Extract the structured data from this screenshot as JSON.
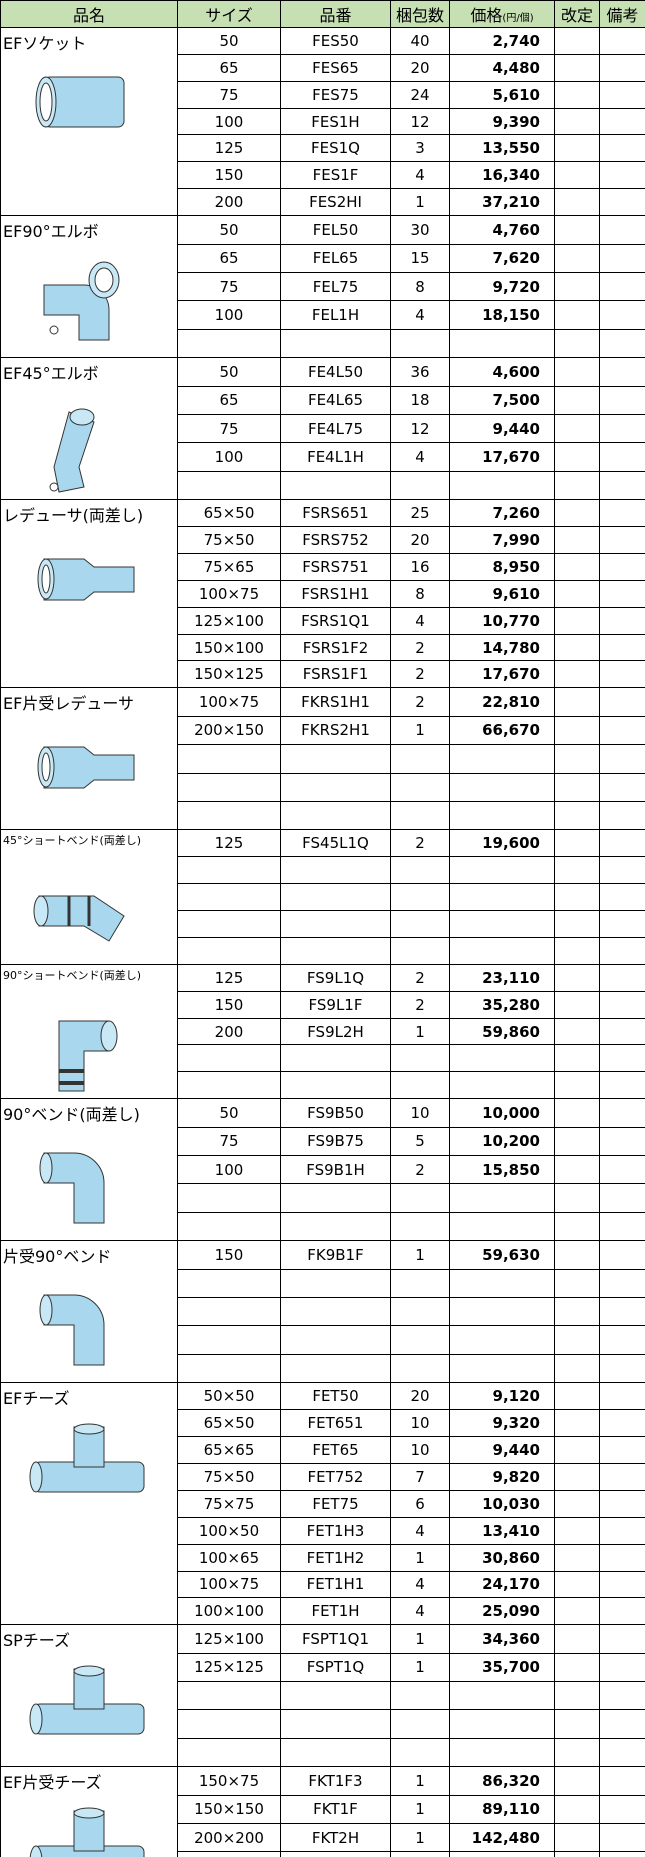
{
  "header": {
    "name": "品名",
    "size": "サイズ",
    "code": "品番",
    "qty": "梱包数",
    "price": "価格",
    "price_unit": "(円/個)",
    "revision": "改定",
    "note": "備考"
  },
  "groups": [
    {
      "name": "EFソケット",
      "rows": [
        [
          "50",
          "FES50",
          40,
          "2,740"
        ],
        [
          "65",
          "FES65",
          20,
          "4,480"
        ],
        [
          "75",
          "FES75",
          24,
          "5,610"
        ],
        [
          "100",
          "FES1H",
          12,
          "9,390"
        ],
        [
          "125",
          "FES1Q",
          3,
          "13,550"
        ],
        [
          "150",
          "FES1F",
          4,
          "16,340"
        ],
        [
          "200",
          "FES2HI",
          1,
          "37,210"
        ]
      ]
    },
    {
      "name": "EF90°エルボ",
      "rows": [
        [
          "50",
          "FEL50",
          30,
          "4,760"
        ],
        [
          "65",
          "FEL65",
          15,
          "7,620"
        ],
        [
          "75",
          "FEL75",
          8,
          "9,720"
        ],
        [
          "100",
          "FEL1H",
          4,
          "18,150"
        ]
      ]
    },
    {
      "name": "EF45°エルボ",
      "rows": [
        [
          "50",
          "FE4L50",
          36,
          "4,600"
        ],
        [
          "65",
          "FE4L65",
          18,
          "7,500"
        ],
        [
          "75",
          "FE4L75",
          12,
          "9,440"
        ],
        [
          "100",
          "FE4L1H",
          4,
          "17,670"
        ]
      ]
    },
    {
      "name": "レデューサ(両差し)",
      "rows": [
        [
          "65×50",
          "FSRS651",
          25,
          "7,260"
        ],
        [
          "75×50",
          "FSRS752",
          20,
          "7,990"
        ],
        [
          "75×65",
          "FSRS751",
          16,
          "8,950"
        ],
        [
          "100×75",
          "FSRS1H1",
          8,
          "9,610"
        ],
        [
          "125×100",
          "FSRS1Q1",
          4,
          "10,770"
        ],
        [
          "150×100",
          "FSRS1F2",
          2,
          "14,780"
        ],
        [
          "150×125",
          "FSRS1F1",
          2,
          "17,670"
        ]
      ]
    },
    {
      "name": "EF片受レデューサ",
      "rows": [
        [
          "100×75",
          "FKRS1H1",
          2,
          "22,810"
        ],
        [
          "200×150",
          "FKRS2H1",
          1,
          "66,670"
        ]
      ]
    },
    {
      "name": "45°ショートベンド(両差し)",
      "rows": [
        [
          "125",
          "FS45L1Q",
          2,
          "19,600"
        ]
      ]
    },
    {
      "name": "90°ショートベンド(両差し)",
      "rows": [
        [
          "125",
          "FS9L1Q",
          2,
          "23,110"
        ],
        [
          "150",
          "FS9L1F",
          2,
          "35,280"
        ],
        [
          "200",
          "FS9L2H",
          1,
          "59,860"
        ]
      ]
    },
    {
      "name": "90°ベンド(両差し)",
      "rows": [
        [
          "50",
          "FS9B50",
          10,
          "10,000"
        ],
        [
          "75",
          "FS9B75",
          5,
          "10,200"
        ],
        [
          "100",
          "FS9B1H",
          2,
          "15,850"
        ]
      ]
    },
    {
      "name": "片受90°ベンド",
      "rows": [
        [
          "150",
          "FK9B1F",
          1,
          "59,630"
        ]
      ]
    },
    {
      "name": "EFチーズ",
      "rows": [
        [
          "50×50",
          "FET50",
          20,
          "9,120"
        ],
        [
          "65×50",
          "FET651",
          10,
          "9,320"
        ],
        [
          "65×65",
          "FET65",
          10,
          "9,440"
        ],
        [
          "75×50",
          "FET752",
          7,
          "9,820"
        ],
        [
          "75×75",
          "FET75",
          6,
          "10,030"
        ],
        [
          "100×50",
          "FET1H3",
          4,
          "13,410"
        ],
        [
          "100×65",
          "FET1H2",
          1,
          "30,860"
        ],
        [
          "100×75",
          "FET1H1",
          4,
          "24,170"
        ],
        [
          "100×100",
          "FET1H",
          4,
          "25,090"
        ]
      ]
    },
    {
      "name": "SPチーズ",
      "rows": [
        [
          "125×100",
          "FSPT1Q1",
          1,
          "34,360"
        ],
        [
          "125×125",
          "FSPT1Q",
          1,
          "35,700"
        ]
      ]
    },
    {
      "name": "EF片受チーズ",
      "rows": [
        [
          "150×75",
          "FKT1F3",
          1,
          "86,320"
        ],
        [
          "150×150",
          "FKT1F",
          1,
          "89,110"
        ],
        [
          "200×200",
          "FKT2H",
          1,
          "142,480"
        ]
      ]
    }
  ]
}
